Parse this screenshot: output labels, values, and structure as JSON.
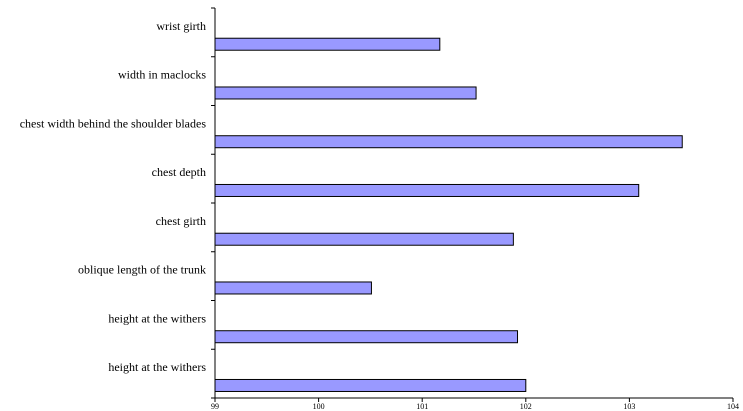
{
  "chart_data": {
    "type": "bar",
    "orientation": "horizontal",
    "categories": [
      "wrist girth",
      "width in maclocks",
      "chest width behind the shoulder blades",
      "chest depth",
      "chest girth",
      "oblique length of the trunk",
      "height at the withers",
      "height at the withers"
    ],
    "values": [
      101.17,
      101.52,
      103.51,
      103.09,
      101.88,
      100.51,
      101.92,
      102.0
    ],
    "title": "",
    "xlabel": "",
    "ylabel": "",
    "xlim": [
      99,
      104
    ],
    "xticks": [
      "99",
      "100",
      "101",
      "102",
      "103",
      "104"
    ],
    "grid": false,
    "legend": "none",
    "bar_color": "#9999ff",
    "bar_edge_color": "#000000"
  }
}
